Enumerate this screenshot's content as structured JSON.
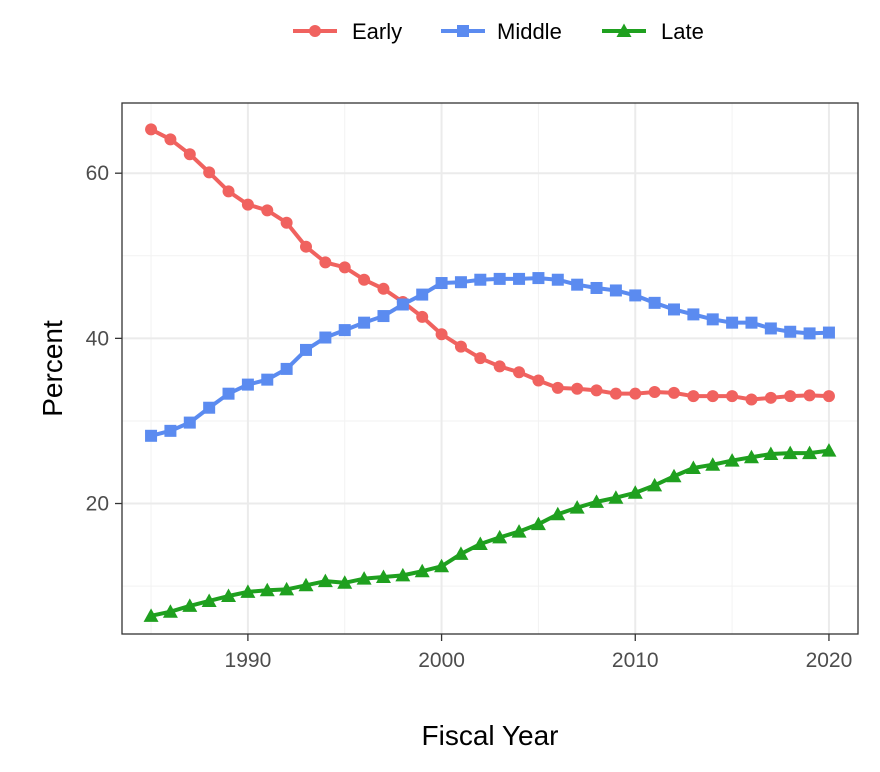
{
  "chart_data": {
    "type": "line",
    "title": "",
    "xlabel": "Fiscal Year",
    "ylabel": "Percent",
    "xlim": [
      1983.5,
      2021.5
    ],
    "ylim": [
      4.2,
      68.5
    ],
    "xticks": [
      1990,
      2000,
      2010,
      2020
    ],
    "yticks": [
      20,
      40,
      60
    ],
    "grid": true,
    "legend_position": "top",
    "x": [
      1985,
      1986,
      1987,
      1988,
      1989,
      1990,
      1991,
      1992,
      1993,
      1994,
      1995,
      1996,
      1997,
      1998,
      1999,
      2000,
      2001,
      2002,
      2003,
      2004,
      2005,
      2006,
      2007,
      2008,
      2009,
      2010,
      2011,
      2012,
      2013,
      2014,
      2015,
      2016,
      2017,
      2018,
      2019,
      2020
    ],
    "series": [
      {
        "name": "Early",
        "color": "#f0625f",
        "marker": "circle",
        "values": [
          65.3,
          64.1,
          62.3,
          60.1,
          57.8,
          56.2,
          55.5,
          54.0,
          51.1,
          49.2,
          48.6,
          47.1,
          46.0,
          44.4,
          42.6,
          40.5,
          39.0,
          37.6,
          36.6,
          35.9,
          34.9,
          34.0,
          33.9,
          33.7,
          33.3,
          33.3,
          33.5,
          33.4,
          33.0,
          33.0,
          33.0,
          32.6,
          32.8,
          33.0,
          33.1,
          33.0
        ]
      },
      {
        "name": "Middle",
        "color": "#5b8bf0",
        "marker": "square",
        "values": [
          28.2,
          28.8,
          29.8,
          31.6,
          33.3,
          34.4,
          35.0,
          36.3,
          38.6,
          40.1,
          41.0,
          41.9,
          42.7,
          44.1,
          45.3,
          46.7,
          46.8,
          47.1,
          47.2,
          47.2,
          47.3,
          47.1,
          46.5,
          46.1,
          45.8,
          45.2,
          44.3,
          43.5,
          42.9,
          42.3,
          41.9,
          41.9,
          41.2,
          40.8,
          40.6,
          40.7
        ]
      },
      {
        "name": "Late",
        "color": "#1fa01f",
        "marker": "triangle",
        "values": [
          6.4,
          6.9,
          7.6,
          8.2,
          8.8,
          9.3,
          9.5,
          9.6,
          10.1,
          10.6,
          10.4,
          10.9,
          11.1,
          11.3,
          11.8,
          12.4,
          13.9,
          15.1,
          15.9,
          16.6,
          17.5,
          18.7,
          19.5,
          20.2,
          20.7,
          21.3,
          22.2,
          23.3,
          24.3,
          24.7,
          25.2,
          25.6,
          26.0,
          26.1,
          26.1,
          26.4
        ]
      }
    ]
  }
}
